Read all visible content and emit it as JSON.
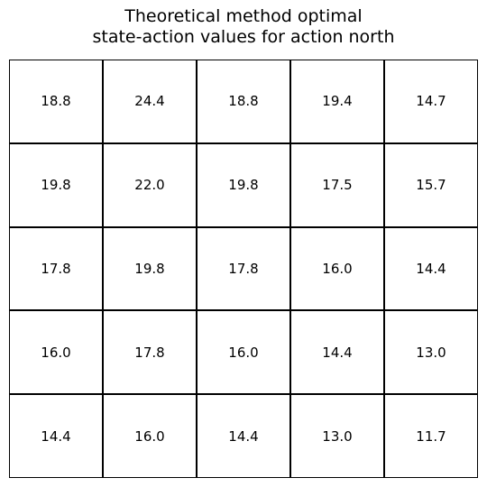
{
  "chart_data": {
    "type": "table",
    "title": "Theoretical method optimal state-action values for action north",
    "title_lines": [
      "Theoretical method optimal",
      "state-action values for action north"
    ],
    "rows": 5,
    "cols": 5,
    "values": [
      [
        "18.8",
        "24.4",
        "18.8",
        "19.4",
        "14.7"
      ],
      [
        "19.8",
        "22.0",
        "19.8",
        "17.5",
        "15.7"
      ],
      [
        "17.8",
        "19.8",
        "17.8",
        "16.0",
        "14.4"
      ],
      [
        "16.0",
        "17.8",
        "16.0",
        "14.4",
        "13.0"
      ],
      [
        "14.4",
        "16.0",
        "14.4",
        "13.0",
        "11.7"
      ]
    ]
  }
}
